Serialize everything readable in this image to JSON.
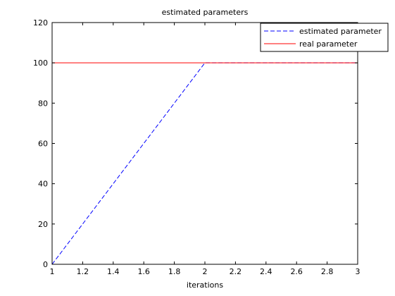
{
  "chart_data": {
    "type": "line",
    "title": "estimated parameters",
    "xlabel": "iterations",
    "ylabel": "",
    "xlim": [
      1,
      3
    ],
    "ylim": [
      0,
      120
    ],
    "xticks": [
      1,
      1.2,
      1.4,
      1.6,
      1.8,
      2,
      2.2,
      2.4,
      2.6,
      2.8,
      3
    ],
    "xtick_labels": [
      "1",
      "1.2",
      "1.4",
      "1.6",
      "1.8",
      "2",
      "2.2",
      "2.4",
      "2.6",
      "2.8",
      "3"
    ],
    "yticks": [
      0,
      20,
      40,
      60,
      80,
      100,
      120
    ],
    "ytick_labels": [
      "0",
      "20",
      "40",
      "60",
      "80",
      "100",
      "120"
    ],
    "grid": false,
    "legend_position": "top-right",
    "series": [
      {
        "name": "estimated parameter",
        "color": "#0000ff",
        "style": "dashed",
        "x": [
          1,
          2,
          3
        ],
        "y": [
          0,
          100,
          100
        ]
      },
      {
        "name": "real parameter",
        "color": "#ff0000",
        "style": "solid",
        "x": [
          1,
          3
        ],
        "y": [
          100,
          100
        ]
      }
    ]
  }
}
